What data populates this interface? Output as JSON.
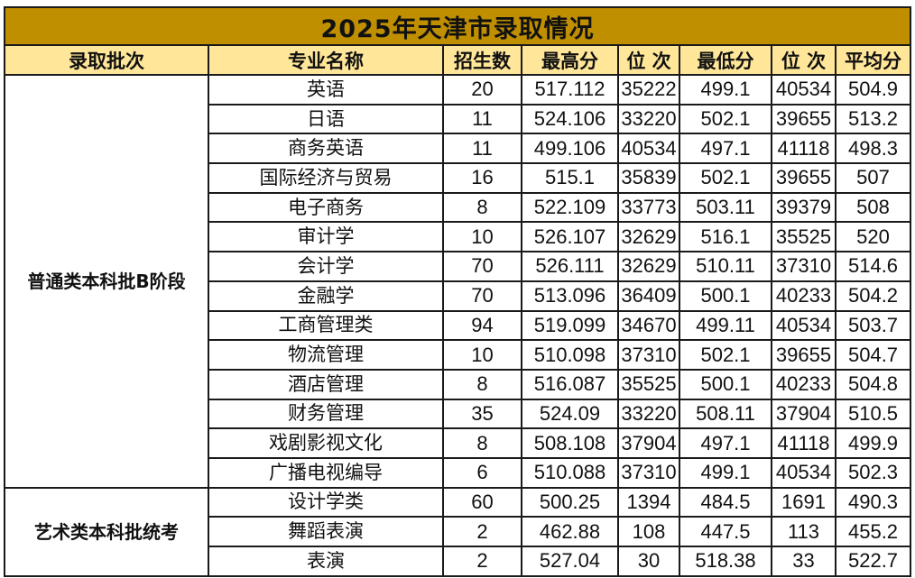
{
  "title": "2025年天津市录取情况",
  "headers": {
    "batch": "录取批次",
    "major": "专业名称",
    "enroll": "招生数",
    "max_score": "最高分",
    "max_rank": "位  次",
    "min_score": "最低分",
    "min_rank": "位  次",
    "avg_score": "平均分"
  },
  "groups": [
    {
      "batch": "普通类本科批B阶段",
      "rows": [
        {
          "major": "英语",
          "enroll": "20",
          "max_score": "517.112",
          "max_rank": "35222",
          "min_score": "499.1",
          "min_rank": "40534",
          "avg_score": "504.9"
        },
        {
          "major": "日语",
          "enroll": "11",
          "max_score": "524.106",
          "max_rank": "33220",
          "min_score": "502.1",
          "min_rank": "39655",
          "avg_score": "513.2"
        },
        {
          "major": "商务英语",
          "enroll": "11",
          "max_score": "499.106",
          "max_rank": "40534",
          "min_score": "497.1",
          "min_rank": "41118",
          "avg_score": "498.3"
        },
        {
          "major": "国际经济与贸易",
          "enroll": "16",
          "max_score": "515.1",
          "max_rank": "35839",
          "min_score": "502.1",
          "min_rank": "39655",
          "avg_score": "507"
        },
        {
          "major": "电子商务",
          "enroll": "8",
          "max_score": "522.109",
          "max_rank": "33773",
          "min_score": "503.11",
          "min_rank": "39379",
          "avg_score": "508"
        },
        {
          "major": "审计学",
          "enroll": "10",
          "max_score": "526.107",
          "max_rank": "32629",
          "min_score": "516.1",
          "min_rank": "35525",
          "avg_score": "520"
        },
        {
          "major": "会计学",
          "enroll": "70",
          "max_score": "526.111",
          "max_rank": "32629",
          "min_score": "510.11",
          "min_rank": "37310",
          "avg_score": "514.6"
        },
        {
          "major": "金融学",
          "enroll": "70",
          "max_score": "513.096",
          "max_rank": "36409",
          "min_score": "500.1",
          "min_rank": "40233",
          "avg_score": "504.2"
        },
        {
          "major": "工商管理类",
          "enroll": "94",
          "max_score": "519.099",
          "max_rank": "34670",
          "min_score": "499.11",
          "min_rank": "40534",
          "avg_score": "503.7"
        },
        {
          "major": "物流管理",
          "enroll": "10",
          "max_score": "510.098",
          "max_rank": "37310",
          "min_score": "502.1",
          "min_rank": "39655",
          "avg_score": "504.7"
        },
        {
          "major": "酒店管理",
          "enroll": "8",
          "max_score": "516.087",
          "max_rank": "35525",
          "min_score": "500.1",
          "min_rank": "40233",
          "avg_score": "504.8"
        },
        {
          "major": "财务管理",
          "enroll": "35",
          "max_score": "524.09",
          "max_rank": "33220",
          "min_score": "508.11",
          "min_rank": "37904",
          "avg_score": "510.5"
        },
        {
          "major": "戏剧影视文化",
          "enroll": "8",
          "max_score": "508.108",
          "max_rank": "37904",
          "min_score": "497.1",
          "min_rank": "41118",
          "avg_score": "499.9"
        },
        {
          "major": "广播电视编导",
          "enroll": "6",
          "max_score": "510.088",
          "max_rank": "37310",
          "min_score": "499.1",
          "min_rank": "40534",
          "avg_score": "502.3"
        }
      ]
    },
    {
      "batch": "艺术类本科批统考",
      "rows": [
        {
          "major": "设计学类",
          "enroll": "60",
          "max_score": "500.25",
          "max_rank": "1394",
          "min_score": "484.5",
          "min_rank": "1691",
          "avg_score": "490.3"
        },
        {
          "major": "舞蹈表演",
          "enroll": "2",
          "max_score": "462.88",
          "max_rank": "108",
          "min_score": "447.5",
          "min_rank": "113",
          "avg_score": "455.2"
        },
        {
          "major": "表演",
          "enroll": "2",
          "max_score": "527.04",
          "max_rank": "30",
          "min_score": "518.38",
          "min_rank": "33",
          "avg_score": "522.7"
        }
      ]
    }
  ],
  "colors": {
    "title_bg": "#bf8f00",
    "header_bg": "#ffe699",
    "border": "#1a1a1a"
  }
}
